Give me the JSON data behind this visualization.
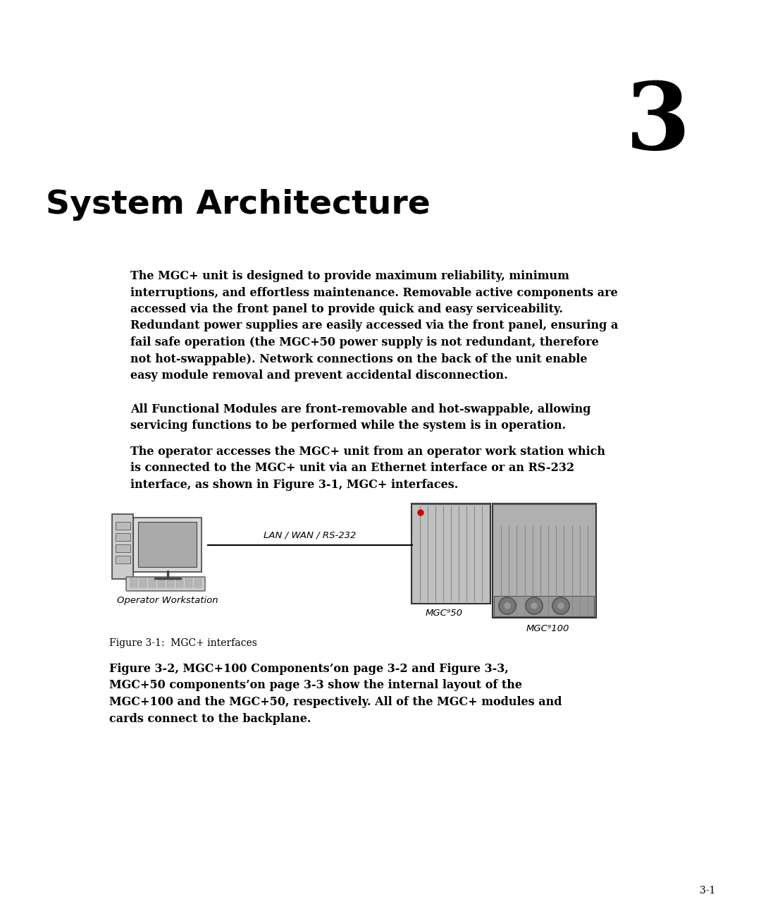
{
  "bg_color": "#ffffff",
  "chapter_number": "3",
  "divider_color": "#bbbbbb",
  "title": "System Architecture",
  "para1": "The MGC+ unit is designed to provide maximum reliability, minimum\ninterruptions, and effortless maintenance. Removable active components are\naccessed via the front panel to provide quick and easy serviceability.\nRedundant power supplies are easily accessed via the front panel, ensuring a\nfail safe operation (the MGC+50 power supply is not redundant, therefore\nnot hot-swappable). Network connections on the back of the unit enable\neasy module removal and prevent accidental disconnection.",
  "para2": "All Functional Modules are front-removable and hot-swappable, allowing\nservicing functions to be performed while the system is in operation.",
  "para3": "The operator accesses the MGC+ unit from an operator work station which\nis connected to the MGC+ unit via an Ethernet interface or an RS-232\ninterface, as shown in Figure 3-1, MGC+ interfaces.",
  "para4": "Figure 3-2, MGC+100 Components’on page 3-2 and Figure 3-3,\nMGC+50 components’on page 3-3 show the internal layout of the\nMGC+100 and the MGC+50, respectively. All of the MGC+ modules and\ncards connect to the backplane.",
  "fig_caption": "Figure 3-1:  MGC+ interfaces",
  "lan_label": "LAN / WAN / RS-232",
  "ws_label": "Operator Workstation",
  "mgc50_label": "MGC⁹50",
  "mgc100_label": "MGC⁹100",
  "page_num": "3-1"
}
